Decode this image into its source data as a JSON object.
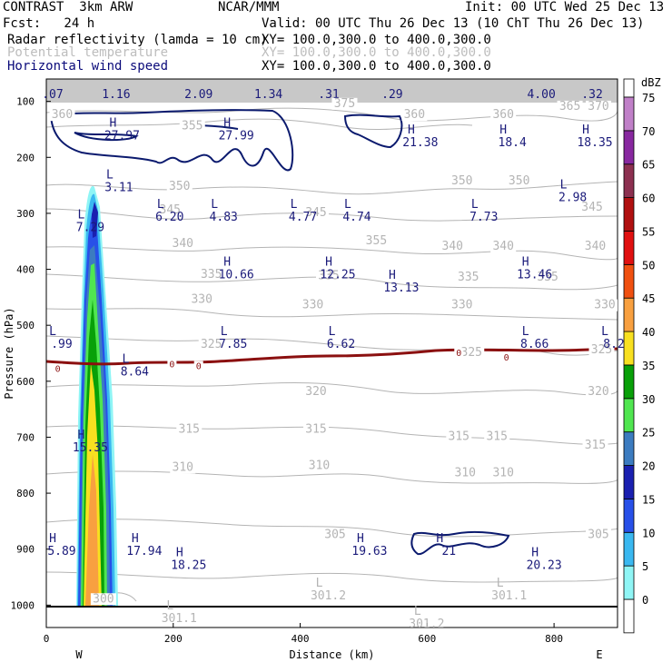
{
  "header": {
    "model": "CONTRAST  3km ARW",
    "org": "NCAR/MMM",
    "init": "Init: 00 UTC Wed 25 Dec 13",
    "fcst": "Fcst:   24 h",
    "valid": "Valid: 00 UTC Thu 26 Dec 13 (10 ChT Thu 26 Dec 13)",
    "field1": "Radar reflectivity (lamda = 10 cm)",
    "field1_xy": "XY= 100.0,300.0 to 400.0,300.0",
    "field2": "Potential temperature",
    "field2_xy": "XY= 100.0,300.0 to 400.0,300.0",
    "field3": "Horizontal wind speed",
    "field3_xy": "XY= 100.0,300.0 to 400.0,300.0"
  },
  "colors": {
    "theta": "#b4b4b4",
    "wind": "#0b1a6e",
    "freezing": "#8b1010",
    "label_dark": "#1a1a7a"
  },
  "chart_data": {
    "type": "cross-section",
    "xlabel": "Distance (km)",
    "ylabel": "Pressure (hPa)",
    "xlim": [
      0,
      900
    ],
    "ylim": [
      1040,
      60
    ],
    "xticks": [
      0,
      200,
      400,
      600,
      800
    ],
    "yticks": [
      100,
      200,
      300,
      400,
      500,
      600,
      700,
      800,
      900,
      1000
    ],
    "x_end_labels": {
      "left": "W",
      "right": "E"
    },
    "colorbar": {
      "title": "dBZ",
      "levels": [
        0,
        5,
        10,
        15,
        20,
        25,
        30,
        35,
        40,
        45,
        50,
        55,
        60,
        65,
        70,
        75
      ],
      "colors": [
        "#ffffff",
        "#8ff5f5",
        "#3ab8f0",
        "#2850e8",
        "#1a20b0",
        "#3c7cc0",
        "#50e650",
        "#08a008",
        "#f8e020",
        "#f8a040",
        "#f05010",
        "#e01010",
        "#b01010",
        "#8c3050",
        "#8828a0",
        "#c080c8"
      ]
    },
    "theta_labels": [
      {
        "x": 470,
        "p": 110,
        "text": "375"
      },
      {
        "x": 825,
        "p": 115,
        "text": "365"
      },
      {
        "x": 870,
        "p": 115,
        "text": "370"
      },
      {
        "x": 580,
        "p": 130,
        "text": "360"
      },
      {
        "x": 720,
        "p": 130,
        "text": "360"
      },
      {
        "x": 520,
        "p": 355,
        "text": "355"
      },
      {
        "x": 230,
        "p": 150,
        "text": "355"
      },
      {
        "x": 25,
        "p": 130,
        "text": "360"
      },
      {
        "x": 210,
        "p": 258,
        "text": "350"
      },
      {
        "x": 655,
        "p": 248,
        "text": "350"
      },
      {
        "x": 745,
        "p": 248,
        "text": "350"
      },
      {
        "x": 195,
        "p": 300,
        "text": "345"
      },
      {
        "x": 425,
        "p": 305,
        "text": "345"
      },
      {
        "x": 860,
        "p": 295,
        "text": "345"
      },
      {
        "x": 215,
        "p": 360,
        "text": "340"
      },
      {
        "x": 640,
        "p": 365,
        "text": "340"
      },
      {
        "x": 720,
        "p": 365,
        "text": "340"
      },
      {
        "x": 865,
        "p": 365,
        "text": "340"
      },
      {
        "x": 260,
        "p": 415,
        "text": "335"
      },
      {
        "x": 445,
        "p": 418,
        "text": "335"
      },
      {
        "x": 665,
        "p": 420,
        "text": "335"
      },
      {
        "x": 790,
        "p": 420,
        "text": "335"
      },
      {
        "x": 245,
        "p": 460,
        "text": "330"
      },
      {
        "x": 420,
        "p": 470,
        "text": "330"
      },
      {
        "x": 655,
        "p": 470,
        "text": "330"
      },
      {
        "x": 880,
        "p": 470,
        "text": "330"
      },
      {
        "x": 260,
        "p": 540,
        "text": "325"
      },
      {
        "x": 670,
        "p": 555,
        "text": "325"
      },
      {
        "x": 875,
        "p": 550,
        "text": "325"
      },
      {
        "x": 425,
        "p": 625,
        "text": "320"
      },
      {
        "x": 870,
        "p": 625,
        "text": "320"
      },
      {
        "x": 225,
        "p": 692,
        "text": "315"
      },
      {
        "x": 425,
        "p": 692,
        "text": "315"
      },
      {
        "x": 650,
        "p": 705,
        "text": "315"
      },
      {
        "x": 710,
        "p": 705,
        "text": "315"
      },
      {
        "x": 865,
        "p": 720,
        "text": "315"
      },
      {
        "x": 215,
        "p": 760,
        "text": "310"
      },
      {
        "x": 430,
        "p": 757,
        "text": "310"
      },
      {
        "x": 660,
        "p": 770,
        "text": "310"
      },
      {
        "x": 720,
        "p": 770,
        "text": "310"
      },
      {
        "x": 455,
        "p": 880,
        "text": "305"
      },
      {
        "x": 870,
        "p": 880,
        "text": "305"
      },
      {
        "x": 90,
        "p": 995,
        "text": "300"
      }
    ],
    "extrema": [
      {
        "x": 105,
        "p": 168,
        "letter": "H",
        "value": "27.97",
        "dark": true
      },
      {
        "x": 285,
        "p": 168,
        "letter": "H",
        "value": "27.99",
        "dark": true
      },
      {
        "x": 575,
        "p": 180,
        "letter": "H",
        "value": "21.38",
        "dark": true
      },
      {
        "x": 720,
        "p": 180,
        "letter": "H",
        "value": "18.4",
        "dark": true
      },
      {
        "x": 850,
        "p": 180,
        "letter": "H",
        "value": "18.35",
        "dark": true
      },
      {
        "x": 100,
        "p": 260,
        "letter": "L",
        "value": "3.11",
        "dark": true
      },
      {
        "x": 815,
        "p": 278,
        "letter": "L",
        "value": "2.98",
        "dark": true
      },
      {
        "x": 180,
        "p": 313,
        "letter": "L",
        "value": "6.20",
        "dark": true
      },
      {
        "x": 265,
        "p": 313,
        "letter": "L",
        "value": "4.83",
        "dark": true
      },
      {
        "x": 390,
        "p": 313,
        "letter": "L",
        "value": "4.77",
        "dark": true
      },
      {
        "x": 475,
        "p": 313,
        "letter": "L",
        "value": "4.74",
        "dark": true
      },
      {
        "x": 675,
        "p": 313,
        "letter": "L",
        "value": "7.73",
        "dark": true
      },
      {
        "x": 55,
        "p": 332,
        "letter": "L",
        "value": "7.29",
        "dark": true
      },
      {
        "x": 285,
        "p": 416,
        "letter": "H",
        "value": "10.66",
        "dark": true
      },
      {
        "x": 445,
        "p": 416,
        "letter": "H",
        "value": "12.25",
        "dark": true
      },
      {
        "x": 545,
        "p": 440,
        "letter": "H",
        "value": "13.13",
        "dark": true
      },
      {
        "x": 755,
        "p": 416,
        "letter": "H",
        "value": "13.46",
        "dark": true
      },
      {
        "x": 10,
        "p": 540,
        "letter": "L",
        "value": ".99",
        "dark": true
      },
      {
        "x": 280,
        "p": 540,
        "letter": "L",
        "value": "7.85",
        "dark": true
      },
      {
        "x": 450,
        "p": 540,
        "letter": "L",
        "value": "6.62",
        "dark": true
      },
      {
        "x": 755,
        "p": 540,
        "letter": "L",
        "value": "8.66",
        "dark": true
      },
      {
        "x": 880,
        "p": 540,
        "letter": "L",
        "value": "8.2",
        "dark": true
      },
      {
        "x": 125,
        "p": 590,
        "letter": "L",
        "value": "8.64",
        "dark": true
      },
      {
        "x": 55,
        "p": 725,
        "letter": "H",
        "value": "15.35",
        "dark": true
      },
      {
        "x": 10,
        "p": 910,
        "letter": "H",
        "value": "5.89",
        "dark": true
      },
      {
        "x": 140,
        "p": 910,
        "letter": "H",
        "value": "17.94",
        "dark": true
      },
      {
        "x": 210,
        "p": 935,
        "letter": "H",
        "value": "18.25",
        "dark": true
      },
      {
        "x": 495,
        "p": 910,
        "letter": "H",
        "value": "19.63",
        "dark": true
      },
      {
        "x": 620,
        "p": 910,
        "letter": "H",
        "value": "21",
        "dark": true
      },
      {
        "x": 770,
        "p": 935,
        "letter": "H",
        "value": "20.23",
        "dark": true
      },
      {
        "x": 430,
        "p": 990,
        "letter": "L",
        "value": "301.2",
        "dark": false
      },
      {
        "x": 715,
        "p": 990,
        "letter": "L",
        "value": "301.1",
        "dark": false
      },
      {
        "x": 195,
        "p": 1030,
        "letter": "L",
        "value": "301.1",
        "dark": false
      },
      {
        "x": 585,
        "p": 1040,
        "letter": "L",
        "value": "301.2",
        "dark": false
      }
    ],
    "top_band_labels": [
      {
        "x": 10,
        "text": ".07"
      },
      {
        "x": 110,
        "text": "1.16"
      },
      {
        "x": 240,
        "text": "2.09"
      },
      {
        "x": 350,
        "text": "1.34"
      },
      {
        "x": 445,
        "text": ".31"
      },
      {
        "x": 545,
        "text": ".29"
      },
      {
        "x": 780,
        "text": "4.00"
      },
      {
        "x": 860,
        "text": ".32"
      }
    ],
    "freezing_labels": [
      {
        "x": 18,
        "p": 580,
        "text": "0"
      },
      {
        "x": 198,
        "p": 572,
        "text": "0"
      },
      {
        "x": 240,
        "p": 575,
        "text": "0"
      },
      {
        "x": 650,
        "p": 552,
        "text": "0"
      },
      {
        "x": 725,
        "p": 560,
        "text": "0"
      }
    ]
  }
}
